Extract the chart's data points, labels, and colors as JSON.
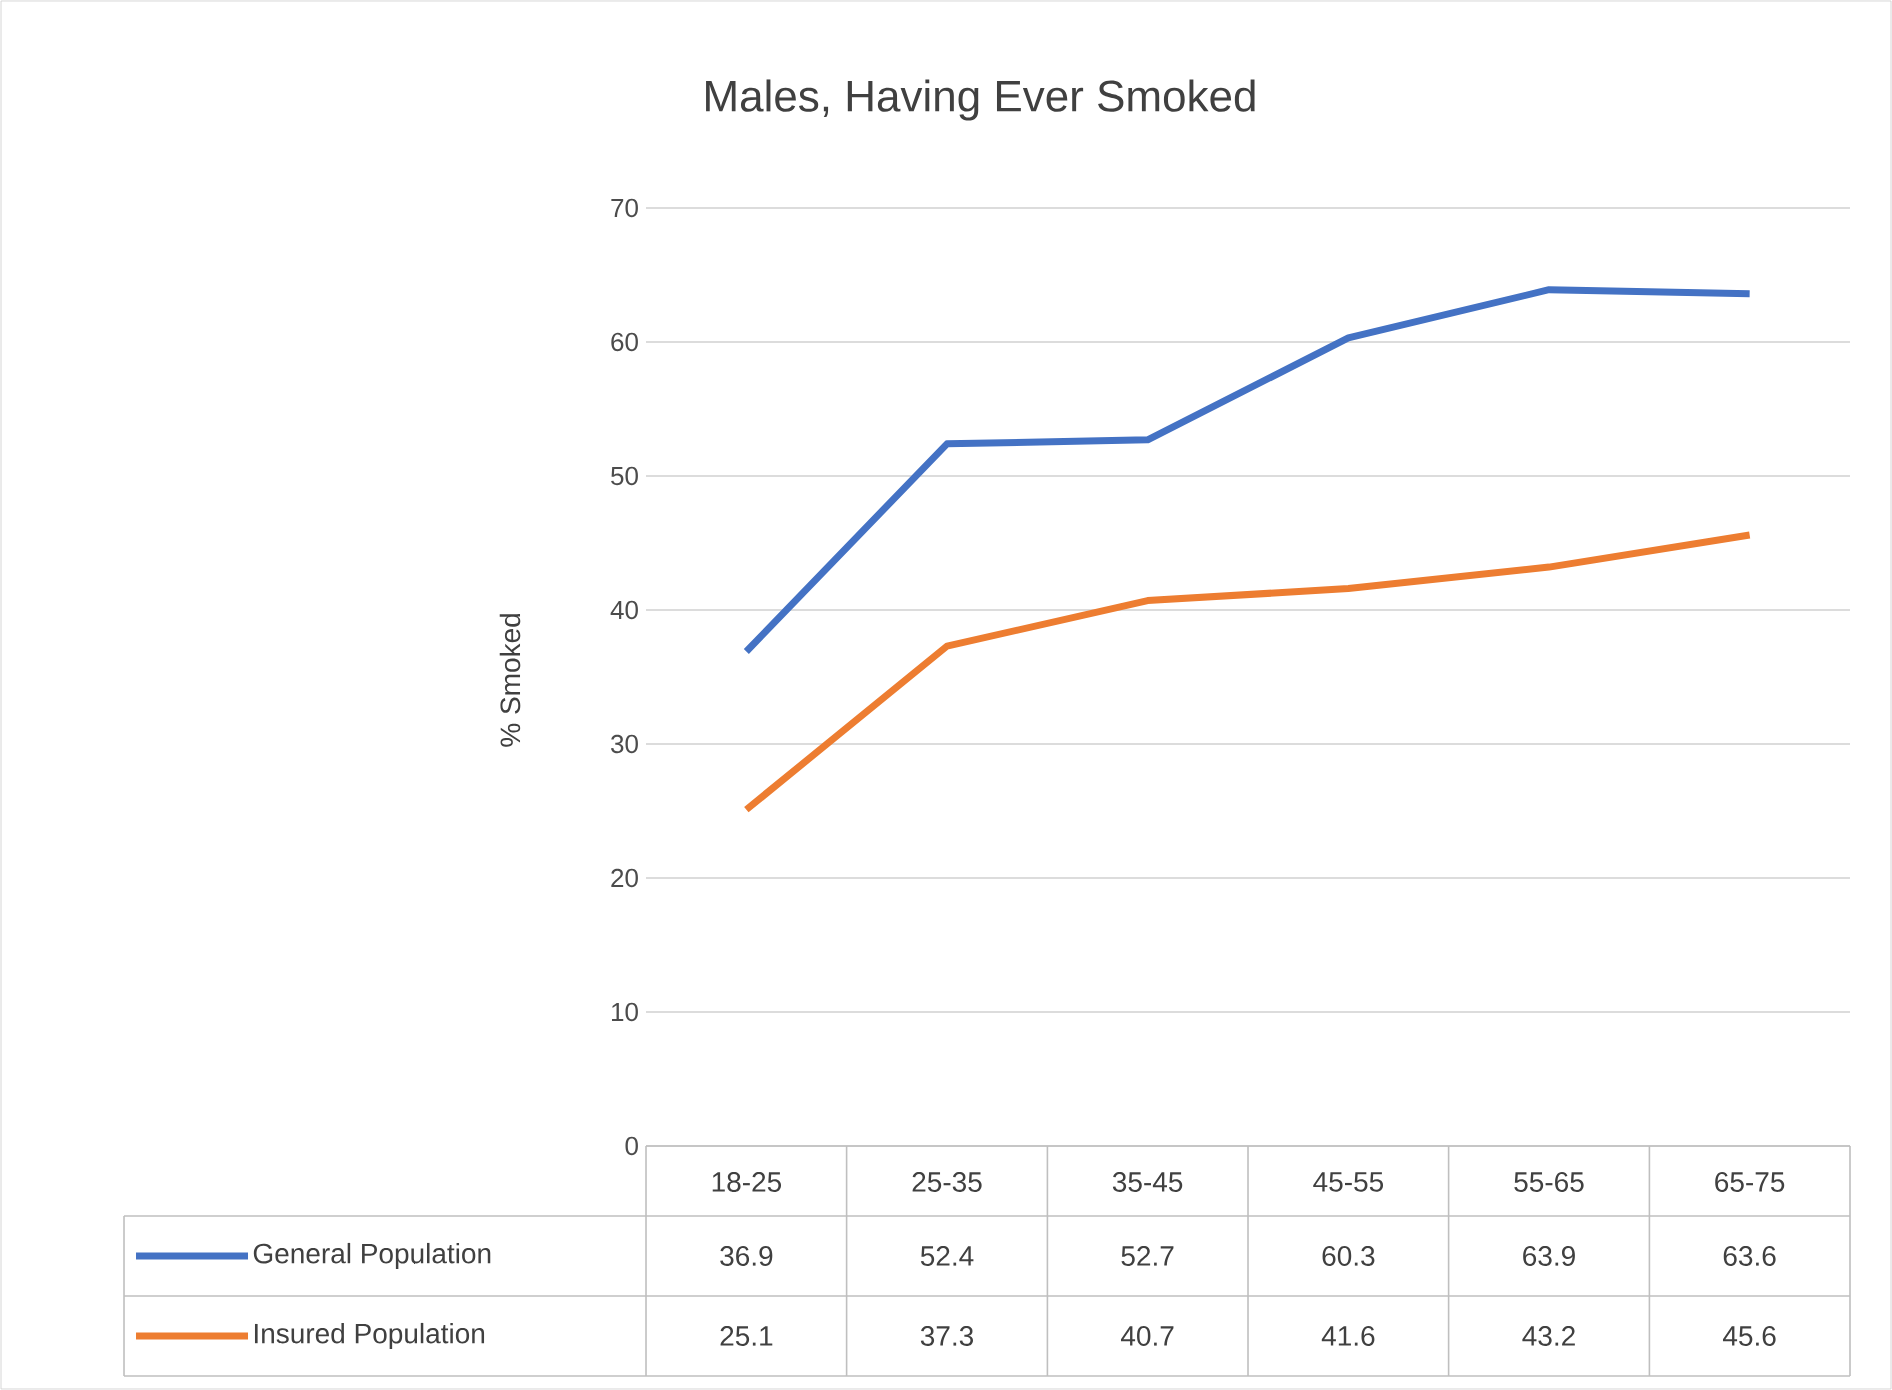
{
  "chart_data": {
    "type": "line",
    "title": "Males, Having Ever Smoked",
    "ylabel": "% Smoked",
    "categories": [
      "18-25",
      "25-35",
      "35-45",
      "45-55",
      "55-65",
      "65-75"
    ],
    "series": [
      {
        "name": "General Population",
        "color": "#4472c4",
        "values": [
          36.9,
          52.4,
          52.7,
          60.3,
          63.9,
          63.6
        ]
      },
      {
        "name": "Insured Population",
        "color": "#ed7d31",
        "values": [
          25.1,
          37.3,
          40.7,
          41.6,
          43.2,
          45.6
        ]
      }
    ],
    "ylim": [
      0,
      70
    ],
    "yticks": [
      0,
      10,
      20,
      30,
      40,
      50,
      60,
      70
    ],
    "grid": "y",
    "legend": "bottom",
    "data_labels": true,
    "marker": "none",
    "line_style": "solid"
  }
}
